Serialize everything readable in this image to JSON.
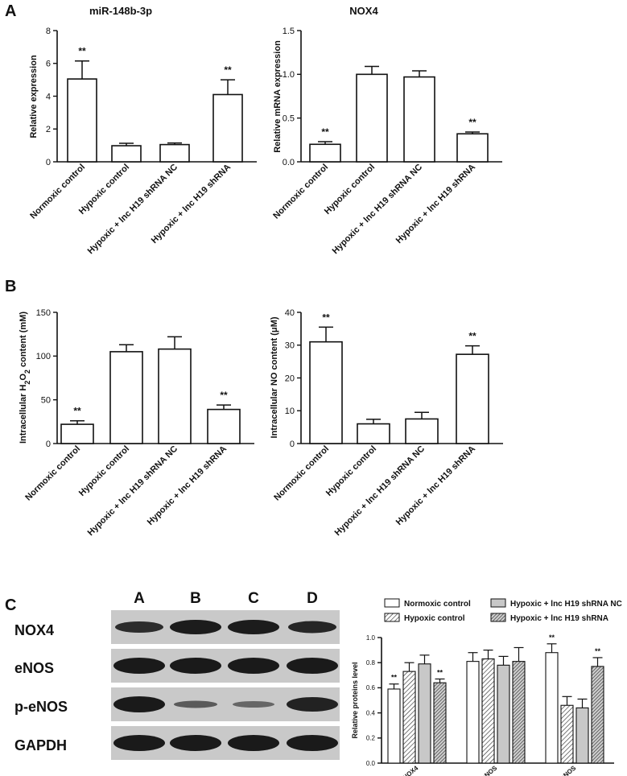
{
  "panels": {
    "A": "A",
    "B": "B",
    "C": "C"
  },
  "chart_data": [
    {
      "type": "bar",
      "title": "miR-148b-3p",
      "ylabel": "Relative expression",
      "ylim": [
        0,
        8
      ],
      "yticks": [
        "0",
        "2",
        "4",
        "6",
        "8"
      ],
      "categories": [
        "Normoxic control",
        "Hypoxic control",
        "Hypoxic + lnc H19 shRNA NC",
        "Hypoxic + lnc H19 shRNA"
      ],
      "values": [
        5.05,
        0.98,
        1.05,
        4.1
      ],
      "errors": [
        1.1,
        0.15,
        0.1,
        0.9
      ],
      "annotations": [
        "**",
        "",
        "",
        "**"
      ]
    },
    {
      "type": "bar",
      "title": "NOX4",
      "ylabel": "Relative mRNA expression",
      "ylim": [
        0,
        1.5
      ],
      "yticks": [
        "0.0",
        "0.5",
        "1.0",
        "1.5"
      ],
      "categories": [
        "Normoxic control",
        "Hypoxic control",
        "Hypoxic + lnc H19 shRNA NC",
        "Hypoxic + lnc H19 shRNA"
      ],
      "values": [
        0.2,
        1.0,
        0.97,
        0.32
      ],
      "errors": [
        0.03,
        0.09,
        0.07,
        0.02
      ],
      "annotations": [
        "**",
        "",
        "",
        "**"
      ]
    },
    {
      "type": "bar",
      "title": "",
      "ylabel": "Intracellular H2O2 content (mM)",
      "ylim": [
        0,
        150
      ],
      "yticks": [
        "0",
        "50",
        "100",
        "150"
      ],
      "categories": [
        "Normoxic control",
        "Hypoxic control",
        "Hypoxic + lnc H19 shRNA NC",
        "Hypoxic + lnc H19 shRNA"
      ],
      "values": [
        22,
        105,
        108,
        39
      ],
      "errors": [
        4,
        8,
        14,
        5
      ],
      "annotations": [
        "**",
        "",
        "",
        "**"
      ]
    },
    {
      "type": "bar",
      "title": "",
      "ylabel": "Intracellular NO content (μM)",
      "ylim": [
        0,
        40
      ],
      "yticks": [
        "0",
        "10",
        "20",
        "30",
        "40"
      ],
      "categories": [
        "Normoxic control",
        "Hypoxic control",
        "Hypoxic + lnc H19 shRNA NC",
        "Hypoxic + lnc H19 shRNA"
      ],
      "values": [
        31,
        6,
        7.5,
        27.2
      ],
      "errors": [
        4.5,
        1.4,
        2,
        2.6
      ],
      "annotations": [
        "**",
        "",
        "",
        "**"
      ]
    },
    {
      "type": "bar",
      "title": "",
      "ylabel": "Relative proteins level",
      "ylim": [
        0,
        1.0
      ],
      "yticks": [
        "0.0",
        "0.2",
        "0.4",
        "0.6",
        "0.8",
        "1.0"
      ],
      "categories": [
        "NOX4",
        "eNOS",
        "p-eNOS"
      ],
      "series": [
        {
          "name": "Normoxic control",
          "values": [
            0.59,
            0.81,
            0.88
          ],
          "errors": [
            0.04,
            0.07,
            0.07
          ],
          "annotations": [
            "**",
            "",
            "**"
          ]
        },
        {
          "name": "Hypoxic control",
          "values": [
            0.73,
            0.83,
            0.46
          ],
          "errors": [
            0.07,
            0.07,
            0.07
          ],
          "annotations": [
            "",
            "",
            ""
          ]
        },
        {
          "name": "Hypoxic + lnc H19 shRNA NC",
          "values": [
            0.79,
            0.78,
            0.44
          ],
          "errors": [
            0.07,
            0.07,
            0.07
          ],
          "annotations": [
            "",
            "",
            ""
          ]
        },
        {
          "name": "Hypoxic + lnc H19 shRNA",
          "values": [
            0.64,
            0.81,
            0.77
          ],
          "errors": [
            0.03,
            0.11,
            0.07
          ],
          "annotations": [
            "**",
            "",
            "**"
          ]
        }
      ],
      "legend_position": "top"
    }
  ],
  "blot": {
    "lanes": [
      "A",
      "B",
      "C",
      "D"
    ],
    "rows": [
      "NOX4",
      "eNOS",
      "p-eNOS",
      "GAPDH"
    ]
  }
}
